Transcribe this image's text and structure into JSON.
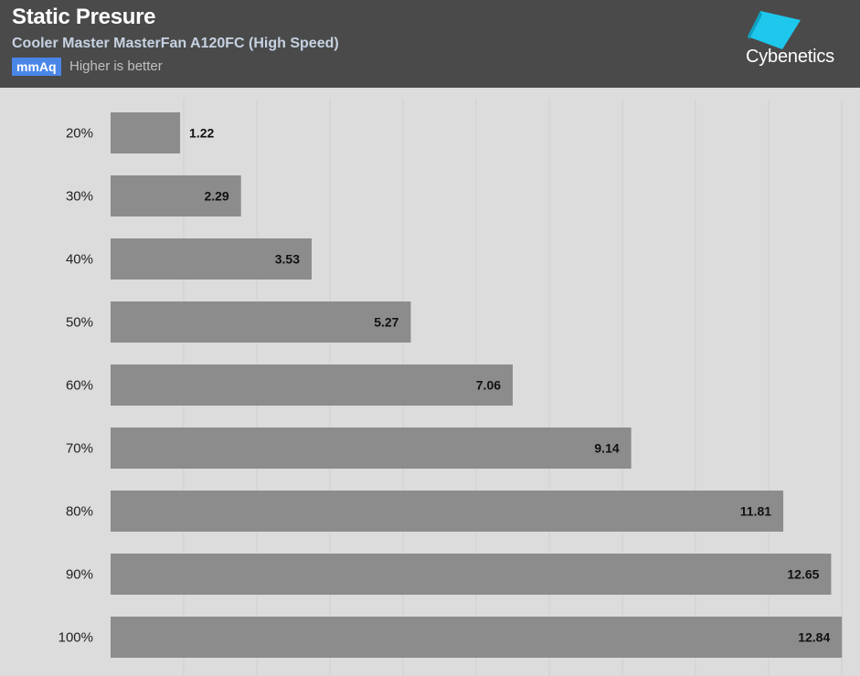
{
  "header": {
    "title": "Static Presure",
    "subtitle": "Cooler Master MasterFan A120FC (High Speed)",
    "unit_badge": "mmAq",
    "note": "Higher is better",
    "logo_text": "Cybenetics"
  },
  "colors": {
    "header_bg": "#4a4a4a",
    "plot_bg": "#dcdcdc",
    "bar": "#8c8c8c",
    "badge": "#4a86e8",
    "logo_cyan": "#1ec8ec",
    "grid": "#cfcfcf"
  },
  "chart_data": {
    "type": "bar",
    "orientation": "horizontal",
    "categories": [
      "20%",
      "30%",
      "40%",
      "50%",
      "60%",
      "70%",
      "80%",
      "90%",
      "100%"
    ],
    "values": [
      1.22,
      2.29,
      3.53,
      5.27,
      7.06,
      9.14,
      11.81,
      12.65,
      12.84
    ],
    "value_labels": [
      "1.22",
      "2.29",
      "3.53",
      "5.27",
      "7.06",
      "9.14",
      "11.81",
      "12.65",
      "12.84"
    ],
    "unit": "mmAq",
    "xlim": [
      0,
      12.9
    ],
    "grid": true
  }
}
